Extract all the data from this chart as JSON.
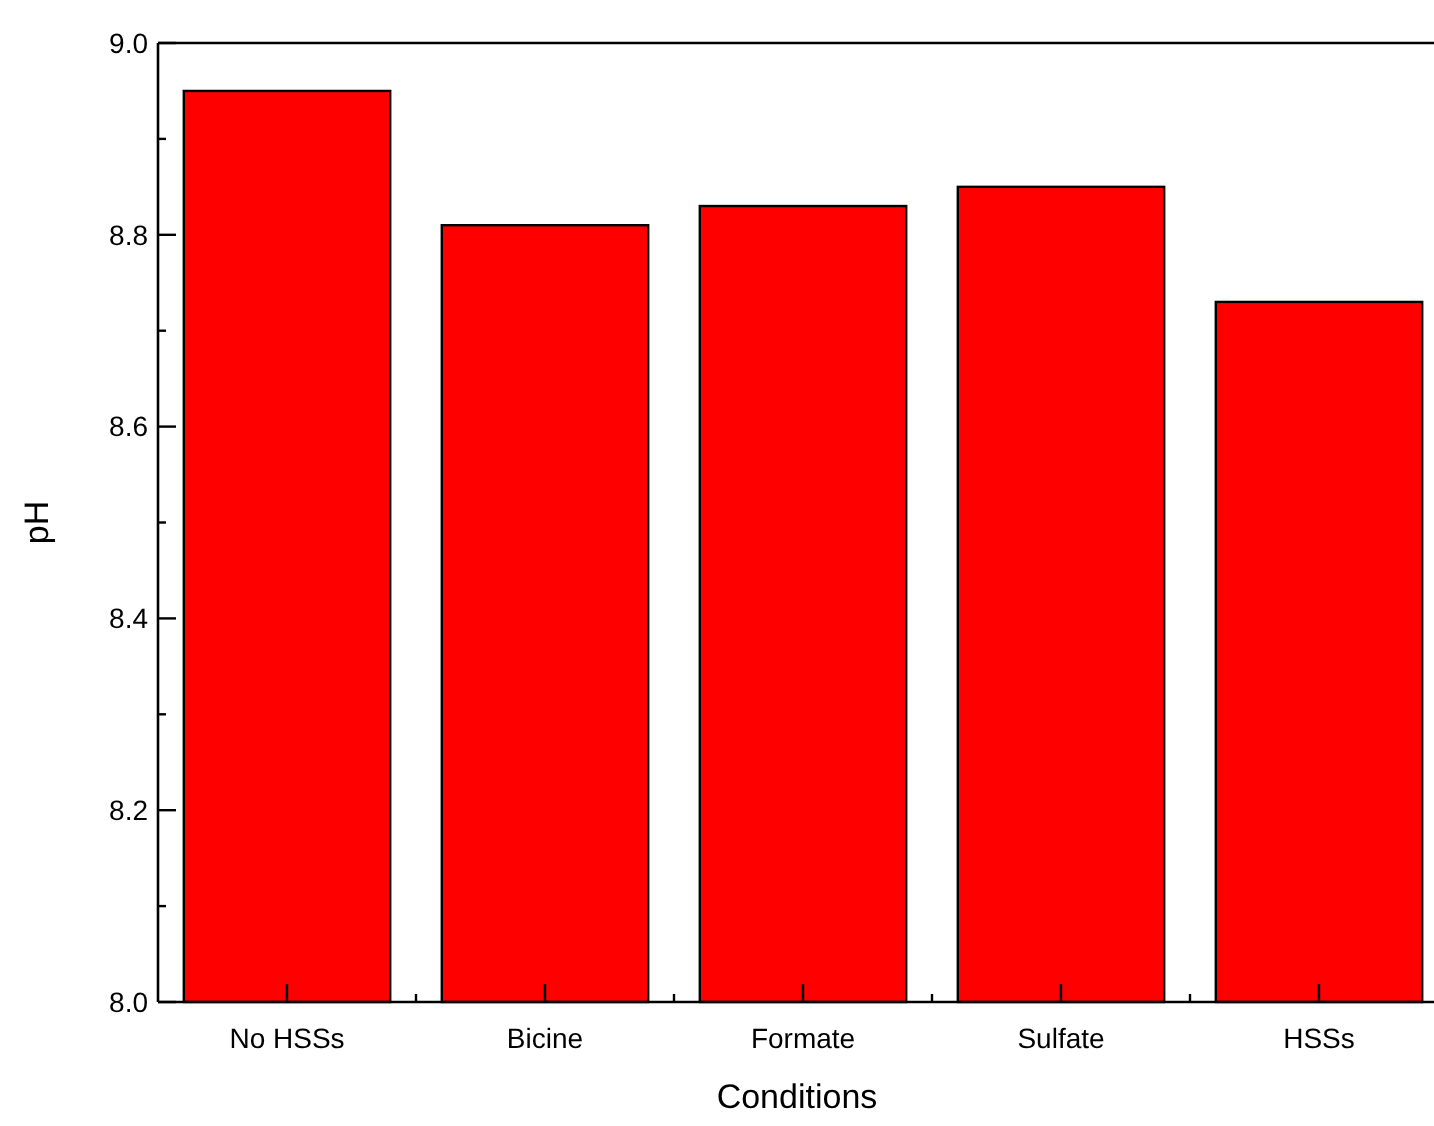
{
  "chart_data": {
    "type": "bar",
    "xlabel": "Conditions",
    "ylabel": "pH",
    "categories": [
      "No HSSs",
      "Bicine",
      "Formate",
      "Sulfate",
      "HSSs"
    ],
    "values": [
      8.95,
      8.81,
      8.83,
      8.85,
      8.73
    ],
    "color": "#ff0000",
    "ylim": [
      8.0,
      9.0
    ],
    "yticks": [
      {
        "value": 8.0,
        "label": "8.0"
      },
      {
        "value": 8.1,
        "label": null
      },
      {
        "value": 8.2,
        "label": "8.2"
      },
      {
        "value": 8.3,
        "label": null
      },
      {
        "value": 8.4,
        "label": "8.4"
      },
      {
        "value": 8.5,
        "label": null
      },
      {
        "value": 8.6,
        "label": "8.6"
      },
      {
        "value": 8.7,
        "label": null
      },
      {
        "value": 8.8,
        "label": "8.8"
      },
      {
        "value": 8.9,
        "label": null
      },
      {
        "value": 9.0,
        "label": "9.0"
      }
    ],
    "grid": false
  }
}
